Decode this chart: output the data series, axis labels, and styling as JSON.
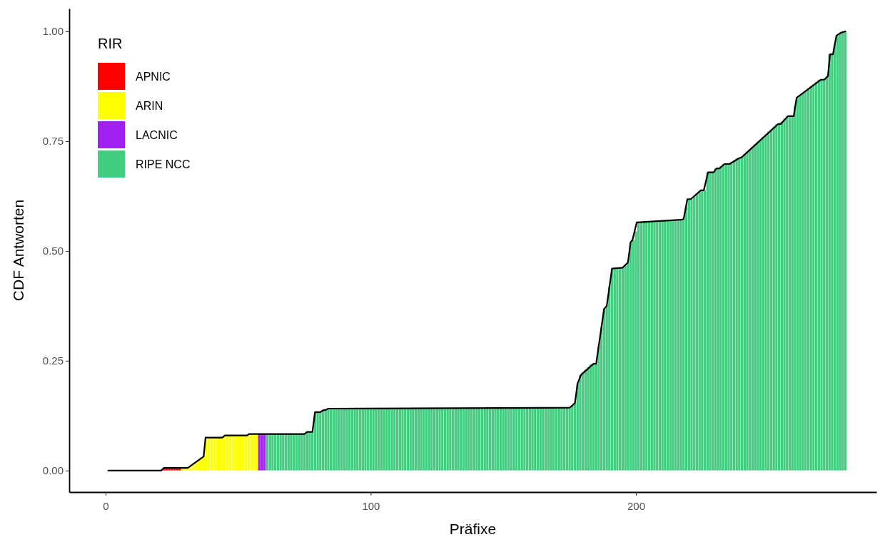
{
  "chart_data": {
    "type": "bar",
    "xlabel": "Präfixe",
    "ylabel": "CDF Antworten",
    "legend_title": "RIR",
    "legend": "top left",
    "grid": false,
    "xlim": [
      -13.7,
      290.7
    ],
    "xticks": [
      0,
      100,
      200
    ],
    "ylim": [
      -0.049,
      1.052
    ],
    "yticks": [
      {
        "value": 0,
        "label": "0.00"
      },
      {
        "value": 0.25,
        "label": "0.25"
      },
      {
        "value": 0.5,
        "label": "0.50"
      },
      {
        "value": 0.75,
        "label": "0.75"
      },
      {
        "value": 1,
        "label": "1.00"
      }
    ],
    "series": [
      {
        "name": "APNIC",
        "color": "#ff0000",
        "x": [
          22,
          23,
          24,
          25,
          26,
          27,
          28
        ],
        "values": [
          0.006,
          0.006,
          0.006,
          0.006,
          0.006,
          0.006,
          0.006
        ]
      },
      {
        "name": "ARIN",
        "color": "#ffff00",
        "x": [
          29,
          30,
          31,
          32,
          33,
          34,
          35,
          36,
          37,
          38,
          39,
          40,
          41,
          42,
          43,
          44,
          45,
          46,
          47,
          48,
          49,
          50,
          51,
          52,
          53,
          54,
          55,
          56,
          57
        ],
        "values": [
          0.006,
          0.006,
          0.006,
          0.01,
          0.015,
          0.02,
          0.025,
          0.03,
          0.032,
          0.075,
          0.075,
          0.075,
          0.075,
          0.075,
          0.075,
          0.075,
          0.08,
          0.08,
          0.08,
          0.08,
          0.08,
          0.08,
          0.08,
          0.08,
          0.08,
          0.083,
          0.083,
          0.083,
          0.083
        ]
      },
      {
        "name": "LACNIC",
        "color": "#a020f0",
        "x": [
          58,
          59,
          60
        ],
        "values": [
          0.083,
          0.083,
          0.083
        ]
      },
      {
        "name": "RIPE NCC",
        "color": "#43cd80",
        "x": [
          61,
          62,
          63,
          64,
          65,
          66,
          67,
          68,
          69,
          70,
          71,
          72,
          73,
          74,
          75,
          76,
          77,
          78,
          79,
          80,
          81,
          82,
          83,
          84,
          85,
          86,
          87,
          88,
          89,
          90,
          91,
          92,
          93,
          94,
          95,
          96,
          97,
          98,
          99,
          100,
          101,
          102,
          103,
          104,
          105,
          106,
          107,
          108,
          109,
          110,
          111,
          112,
          113,
          114,
          115,
          116,
          117,
          118,
          119,
          120,
          121,
          122,
          123,
          124,
          125,
          126,
          127,
          128,
          129,
          130,
          131,
          132,
          133,
          134,
          135,
          136,
          137,
          138,
          139,
          140,
          141,
          142,
          143,
          144,
          145,
          146,
          147,
          148,
          149,
          150,
          151,
          152,
          153,
          154,
          155,
          156,
          157,
          158,
          159,
          160,
          161,
          162,
          163,
          164,
          165,
          166,
          167,
          168,
          169,
          170,
          171,
          172,
          173,
          174,
          175,
          176,
          177,
          178,
          179,
          180,
          181,
          182,
          183,
          184,
          185,
          186,
          187,
          188,
          189,
          190,
          191,
          192,
          193,
          194,
          195,
          196,
          197,
          198,
          199,
          200,
          201,
          202,
          203,
          204,
          205,
          206,
          207,
          208,
          209,
          210,
          211,
          212,
          213,
          214,
          215,
          216,
          217,
          218,
          219,
          220,
          221,
          222,
          223,
          224,
          225,
          226,
          227,
          228,
          229,
          230,
          231,
          232,
          233,
          234,
          235,
          236,
          237,
          238,
          239,
          240,
          241,
          242,
          243,
          244,
          245,
          246,
          247,
          248,
          249,
          250,
          251,
          252,
          253,
          254,
          255,
          256,
          257,
          258,
          259,
          260,
          261,
          262,
          263,
          264,
          265,
          266,
          267,
          268,
          269,
          270,
          271,
          272,
          273,
          274,
          275,
          276,
          277,
          278,
          279
        ],
        "values": [
          0.083,
          0.083,
          0.083,
          0.083,
          0.083,
          0.083,
          0.083,
          0.083,
          0.083,
          0.083,
          0.083,
          0.083,
          0.083,
          0.083,
          0.083,
          0.088,
          0.088,
          0.088,
          0.133,
          0.133,
          0.133,
          0.137,
          0.138,
          0.141,
          0.141,
          0.141,
          0.141,
          0.141,
          0.141,
          0.141,
          0.141,
          0.141,
          0.141,
          0.141,
          0.141,
          0.141,
          0.141,
          0.141,
          0.141,
          0.141,
          0.141,
          0.141,
          0.141,
          0.141,
          0.141,
          0.141,
          0.141,
          0.141,
          0.141,
          0.141,
          0.142,
          0.142,
          0.142,
          0.142,
          0.142,
          0.142,
          0.142,
          0.142,
          0.142,
          0.142,
          0.142,
          0.142,
          0.142,
          0.142,
          0.142,
          0.142,
          0.142,
          0.142,
          0.142,
          0.142,
          0.142,
          0.142,
          0.142,
          0.142,
          0.142,
          0.142,
          0.142,
          0.142,
          0.142,
          0.142,
          0.142,
          0.142,
          0.142,
          0.142,
          0.142,
          0.142,
          0.142,
          0.142,
          0.142,
          0.142,
          0.143,
          0.143,
          0.143,
          0.143,
          0.143,
          0.143,
          0.143,
          0.143,
          0.143,
          0.143,
          0.143,
          0.143,
          0.143,
          0.143,
          0.143,
          0.143,
          0.143,
          0.143,
          0.143,
          0.143,
          0.143,
          0.143,
          0.143,
          0.143,
          0.143,
          0.148,
          0.154,
          0.198,
          0.218,
          0.224,
          0.23,
          0.236,
          0.242,
          0.243,
          0.243,
          0.285,
          0.327,
          0.368,
          0.375,
          0.42,
          0.46,
          0.462,
          0.462,
          0.462,
          0.462,
          0.467,
          0.474,
          0.52,
          0.525,
          0.545,
          0.566,
          0.566,
          0.566,
          0.566,
          0.566,
          0.566,
          0.566,
          0.566,
          0.569,
          0.569,
          0.569,
          0.569,
          0.569,
          0.569,
          0.569,
          0.569,
          0.571,
          0.573,
          0.6,
          0.618,
          0.618,
          0.624,
          0.629,
          0.634,
          0.638,
          0.638,
          0.679,
          0.679,
          0.679,
          0.688,
          0.688,
          0.693,
          0.698,
          0.698,
          0.698,
          0.702,
          0.706,
          0.71,
          0.712,
          0.714,
          0.72,
          0.726,
          0.731,
          0.737,
          0.743,
          0.749,
          0.754,
          0.76,
          0.766,
          0.772,
          0.777,
          0.783,
          0.789,
          0.789,
          0.795,
          0.801,
          0.807,
          0.807,
          0.807,
          0.83,
          0.849,
          0.854,
          0.859,
          0.864,
          0.87,
          0.875,
          0.88,
          0.885,
          0.89,
          0.89,
          0.89,
          0.898,
          0.948,
          0.948,
          0.97,
          0.99,
          0.997,
          0.999,
          1
        ]
      },
      {
        "type": "line",
        "color": "#000000",
        "x": [
          1,
          21,
          22,
          31,
          37,
          37.7,
          44,
          45,
          53.5,
          54,
          75,
          76,
          78,
          79,
          81,
          82,
          83,
          84,
          175,
          176,
          177,
          178,
          179.3,
          184,
          185,
          188,
          189,
          191,
          195,
          197,
          198,
          198.7,
          200.3,
          217,
          218,
          219.4,
          220.7,
          224.5,
          225.6,
          227.2,
          229.3,
          230.4,
          231.5,
          233.4,
          235.3,
          238.8,
          240,
          253.6,
          254.6,
          257.3,
          259.5,
          260.6,
          269.7,
          271,
          272.4,
          273.2,
          274.3,
          275.6,
          277.3,
          279
        ],
        "values": [
          0,
          0,
          0.006,
          0.006,
          0.032,
          0.075,
          0.075,
          0.08,
          0.08,
          0.083,
          0.083,
          0.088,
          0.088,
          0.133,
          0.133,
          0.137,
          0.138,
          0.141,
          0.143,
          0.148,
          0.154,
          0.198,
          0.218,
          0.243,
          0.243,
          0.368,
          0.375,
          0.46,
          0.462,
          0.474,
          0.52,
          0.525,
          0.565,
          0.571,
          0.573,
          0.618,
          0.618,
          0.638,
          0.638,
          0.679,
          0.679,
          0.688,
          0.688,
          0.698,
          0.698,
          0.711,
          0.714,
          0.789,
          0.789,
          0.807,
          0.807,
          0.849,
          0.89,
          0.89,
          0.898,
          0.948,
          0.948,
          0.99,
          0.997,
          1
        ]
      }
    ]
  }
}
